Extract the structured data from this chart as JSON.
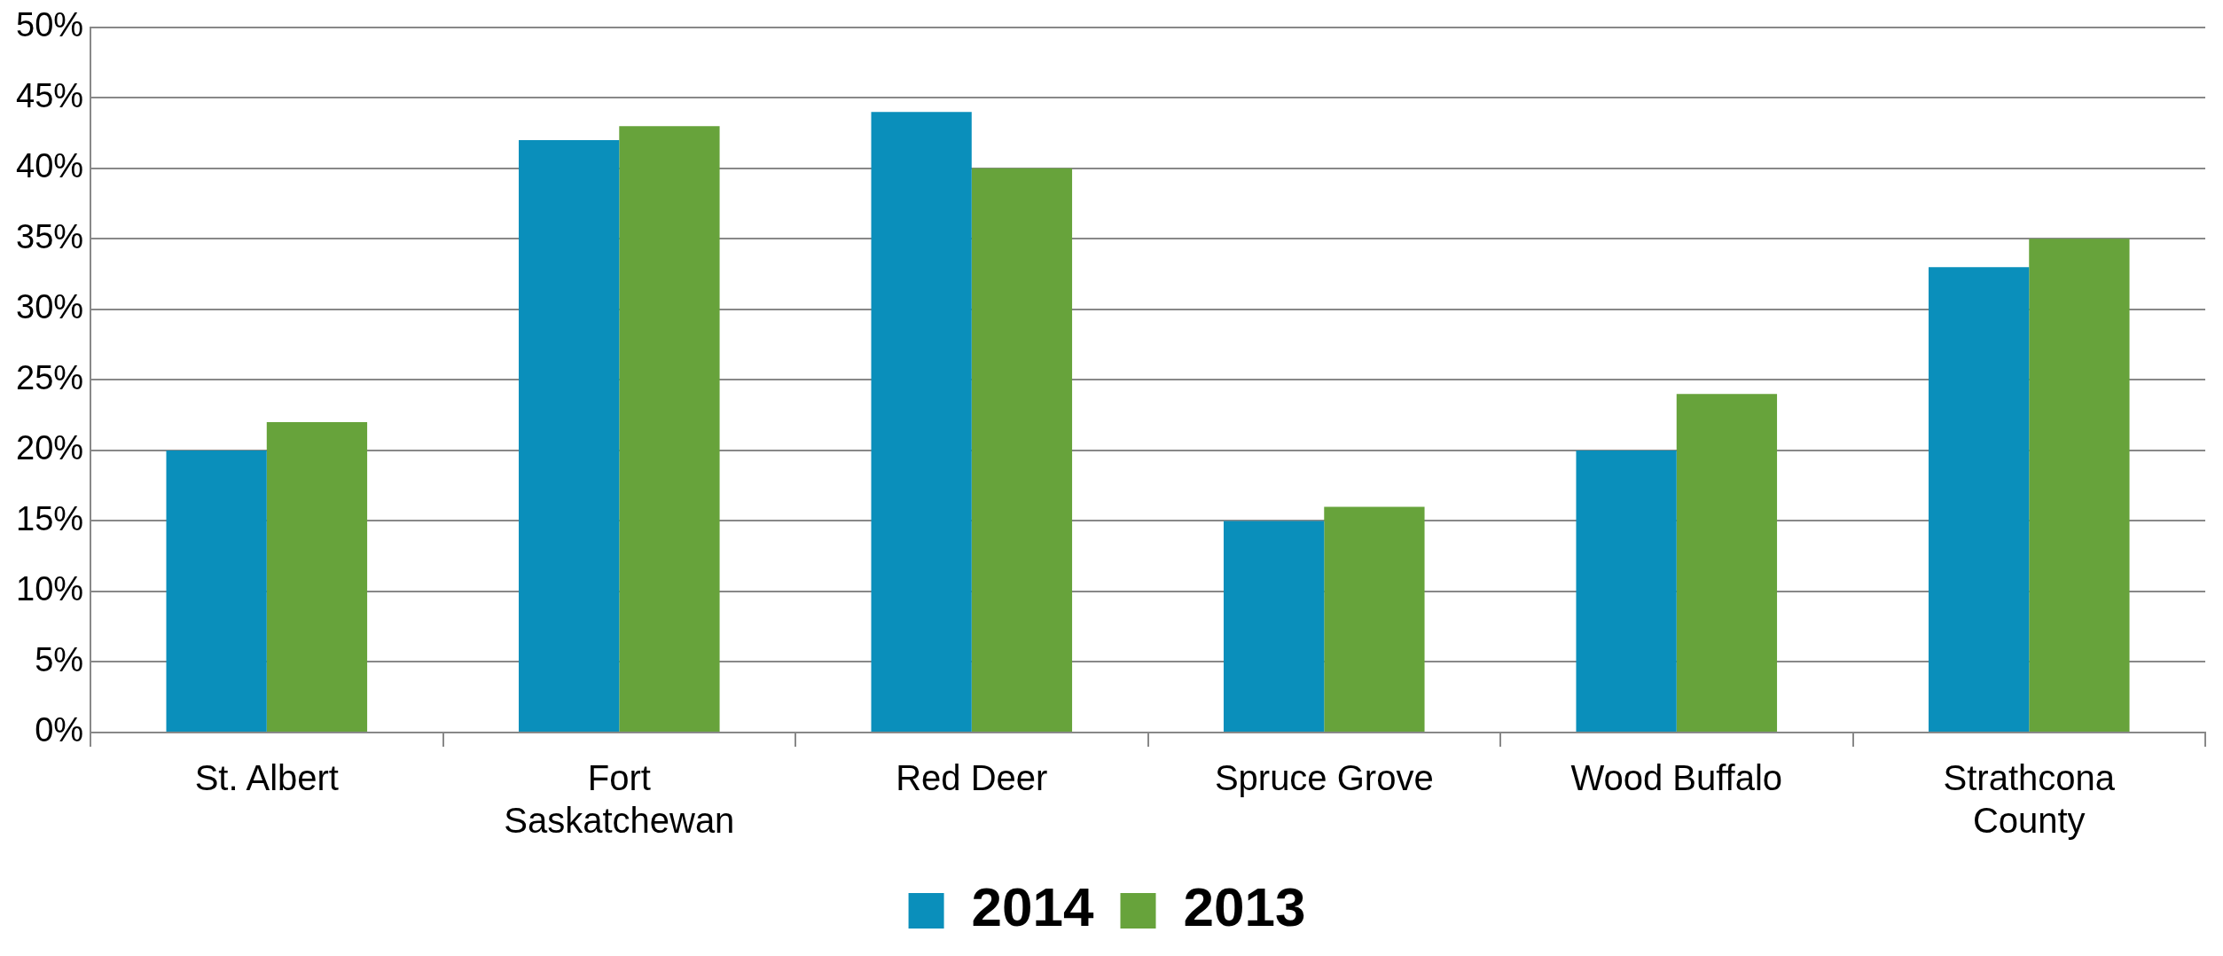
{
  "chart_data": {
    "type": "bar",
    "categories": [
      "St. Albert",
      "Fort Saskatchewan",
      "Red Deer",
      "Spruce Grove",
      "Wood Buffalo",
      "Strathcona County"
    ],
    "series": [
      {
        "name": "2014",
        "color": "#0a8fbb",
        "values": [
          20,
          42,
          44,
          15,
          20,
          33
        ]
      },
      {
        "name": "2013",
        "color": "#67a33b",
        "values": [
          22,
          43,
          40,
          16,
          24,
          35
        ]
      }
    ],
    "ylim": [
      0,
      50
    ],
    "yticks": [
      {
        "value": 0,
        "label": "0%"
      },
      {
        "value": 5,
        "label": "5%"
      },
      {
        "value": 10,
        "label": "10%"
      },
      {
        "value": 15,
        "label": "15%"
      },
      {
        "value": 20,
        "label": "20%"
      },
      {
        "value": 25,
        "label": "25%"
      },
      {
        "value": 30,
        "label": "30%"
      },
      {
        "value": 35,
        "label": "35%"
      },
      {
        "value": 40,
        "label": "40%"
      },
      {
        "value": 45,
        "label": "45%"
      },
      {
        "value": 50,
        "label": "50%"
      }
    ],
    "grid": "y",
    "legend": "bottom"
  }
}
